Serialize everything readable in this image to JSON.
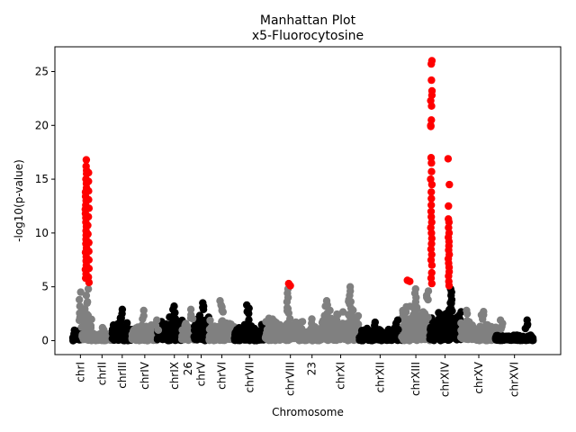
{
  "chart_data": {
    "type": "scatter",
    "title": "Manhattan Plot",
    "subtitle": "x5-Fluorocytosine",
    "xlabel": "Chromosome",
    "ylabel": "-log10(p-value)",
    "ylim": [
      -1.3,
      27.3
    ],
    "xlim": [
      0,
      1000
    ],
    "y_ticks": [
      0,
      5,
      10,
      15,
      20,
      25
    ],
    "grid": false,
    "colors": {
      "black": "#000000",
      "gray": "#808080",
      "significant": "#ff0000"
    },
    "x_ticks": [
      {
        "label": "chrI",
        "x": 16
      },
      {
        "label": "chrII",
        "x": 62
      },
      {
        "label": "chrIII",
        "x": 105
      },
      {
        "label": "chrIV",
        "x": 153
      },
      {
        "label": "chrIX",
        "x": 216
      },
      {
        "label": "26",
        "x": 245
      },
      {
        "label": "chrV",
        "x": 273
      },
      {
        "label": "chrVI",
        "x": 317
      },
      {
        "label": "chrVII",
        "x": 376
      },
      {
        "label": "chrVIII",
        "x": 463
      },
      {
        "label": "23",
        "x": 509
      },
      {
        "label": "chrXI",
        "x": 570
      },
      {
        "label": "chrXII",
        "x": 654
      },
      {
        "label": "chrXIII",
        "x": 730
      },
      {
        "label": "chrXIV",
        "x": 792
      },
      {
        "label": "chrXV",
        "x": 864
      },
      {
        "label": "chrXVI",
        "x": 940
      }
    ],
    "segments": [
      {
        "x0": 0,
        "x1": 20,
        "color": "black",
        "base": 1.2
      },
      {
        "x0": 20,
        "x1": 40,
        "color": "gray",
        "base": 3.0
      },
      {
        "x0": 40,
        "x1": 84,
        "color": "gray",
        "base": 0.8
      },
      {
        "x0": 84,
        "x1": 126,
        "color": "black",
        "base": 1.8
      },
      {
        "x0": 126,
        "x1": 180,
        "color": "gray",
        "base": 1.6
      },
      {
        "x0": 180,
        "x1": 232,
        "color": "black",
        "base": 2.2
      },
      {
        "x0": 232,
        "x1": 258,
        "color": "gray",
        "base": 1.8
      },
      {
        "x0": 258,
        "x1": 290,
        "color": "black",
        "base": 2.4
      },
      {
        "x0": 290,
        "x1": 344,
        "color": "gray",
        "base": 2.0
      },
      {
        "x0": 344,
        "x1": 410,
        "color": "black",
        "base": 1.6
      },
      {
        "x0": 410,
        "x1": 490,
        "color": "gray",
        "base": 2.2
      },
      {
        "x0": 490,
        "x1": 530,
        "color": "gray",
        "base": 1.4
      },
      {
        "x0": 530,
        "x1": 610,
        "color": "gray",
        "base": 3.0
      },
      {
        "x0": 610,
        "x1": 700,
        "color": "black",
        "base": 1.2
      },
      {
        "x0": 700,
        "x1": 760,
        "color": "gray",
        "base": 3.5
      },
      {
        "x0": 760,
        "x1": 826,
        "color": "black",
        "base": 3.0
      },
      {
        "x0": 826,
        "x1": 900,
        "color": "gray",
        "base": 1.8
      },
      {
        "x0": 900,
        "x1": 980,
        "color": "black",
        "base": 0.6
      }
    ],
    "peaks": [
      {
        "x": 16,
        "color": "gray",
        "y": [
          4.5,
          3.8,
          3.2,
          2.6,
          2.0
        ]
      },
      {
        "x": 30,
        "color": "gray",
        "y": [
          4.8,
          4.2,
          3.6
        ]
      },
      {
        "x": 64,
        "color": "gray",
        "y": [
          1.0,
          1.2
        ]
      },
      {
        "x": 105,
        "color": "black",
        "y": [
          2.9,
          2.5,
          2.1
        ]
      },
      {
        "x": 150,
        "color": "gray",
        "y": [
          2.8,
          2.3
        ]
      },
      {
        "x": 178,
        "color": "gray",
        "y": [
          1.9,
          1.5
        ]
      },
      {
        "x": 216,
        "color": "black",
        "y": [
          3.2,
          2.9,
          2.6
        ]
      },
      {
        "x": 252,
        "color": "gray",
        "y": [
          2.9,
          2.4
        ]
      },
      {
        "x": 276,
        "color": "black",
        "y": [
          3.5,
          3.2,
          2.9
        ]
      },
      {
        "x": 316,
        "color": "gray",
        "y": [
          3.7,
          3.3,
          2.8
        ]
      },
      {
        "x": 372,
        "color": "black",
        "y": [
          3.3,
          3.0,
          2.7
        ]
      },
      {
        "x": 458,
        "color": "gray",
        "y": [
          4.8,
          4.4,
          4.0,
          3.6
        ]
      },
      {
        "x": 509,
        "color": "gray",
        "y": [
          2.0,
          1.6
        ]
      },
      {
        "x": 540,
        "color": "gray",
        "y": [
          3.7,
          3.2
        ]
      },
      {
        "x": 590,
        "color": "gray",
        "y": [
          5.0,
          4.6,
          4.2,
          3.8,
          3.4,
          3.0
        ]
      },
      {
        "x": 642,
        "color": "black",
        "y": [
          1.7,
          1.4
        ]
      },
      {
        "x": 690,
        "color": "black",
        "y": [
          1.9,
          1.6
        ]
      },
      {
        "x": 730,
        "color": "gray",
        "y": [
          4.8,
          4.4,
          4.0,
          3.6,
          3.2,
          2.8
        ]
      },
      {
        "x": 755,
        "color": "gray",
        "y": [
          4.6,
          4.2,
          3.8
        ]
      },
      {
        "x": 805,
        "color": "black",
        "y": [
          4.8,
          4.5,
          4.2,
          3.8,
          3.5
        ]
      },
      {
        "x": 840,
        "color": "gray",
        "y": [
          2.8,
          2.5
        ]
      },
      {
        "x": 872,
        "color": "gray",
        "y": [
          2.7,
          2.4
        ]
      },
      {
        "x": 912,
        "color": "gray",
        "y": [
          1.9,
          1.6
        ]
      },
      {
        "x": 965,
        "color": "black",
        "y": [
          1.9,
          1.5
        ]
      }
    ],
    "significant_points": [
      {
        "x": 28,
        "y": [
          16.8,
          16.2,
          15.8,
          15.5,
          15.0,
          14.6,
          14.2,
          13.8,
          13.4,
          13.0,
          12.6,
          12.2,
          11.8,
          11.4,
          11.0,
          10.6,
          10.2,
          9.8,
          9.4,
          9.0,
          8.6,
          8.2,
          7.8,
          7.4,
          7.0,
          6.6,
          6.2,
          5.8
        ]
      },
      {
        "x": 33,
        "y": [
          15.6,
          14.8,
          13.9,
          13.1,
          12.3,
          11.5,
          10.7,
          9.9,
          9.1,
          8.3,
          7.5,
          6.7,
          5.9,
          5.4
        ]
      },
      {
        "x": 459,
        "y": [
          5.3
        ]
      },
      {
        "x": 462,
        "y": [
          5.1
        ]
      },
      {
        "x": 712,
        "y": [
          5.6
        ]
      },
      {
        "x": 718,
        "y": [
          5.5
        ]
      },
      {
        "x": 763,
        "y": [
          26.0,
          25.7,
          24.2,
          23.2,
          22.8,
          22.3,
          21.8,
          20.5,
          20.0,
          19.9,
          17.0,
          16.5,
          15.7,
          15.0,
          14.5,
          13.8,
          13.2,
          12.6,
          12.0,
          11.5,
          11.0,
          10.5,
          10.0,
          9.5,
          9.0,
          8.5,
          8.0,
          7.5,
          7.0,
          6.3,
          5.8,
          5.3
        ]
      },
      {
        "x": 800,
        "y": [
          16.9,
          14.5,
          12.5,
          11.3,
          11.0,
          10.5,
          10.0,
          9.6,
          9.2,
          8.8,
          8.4,
          8.0,
          7.6,
          7.2,
          6.8,
          6.4,
          6.0,
          5.5,
          5.1
        ]
      }
    ]
  }
}
